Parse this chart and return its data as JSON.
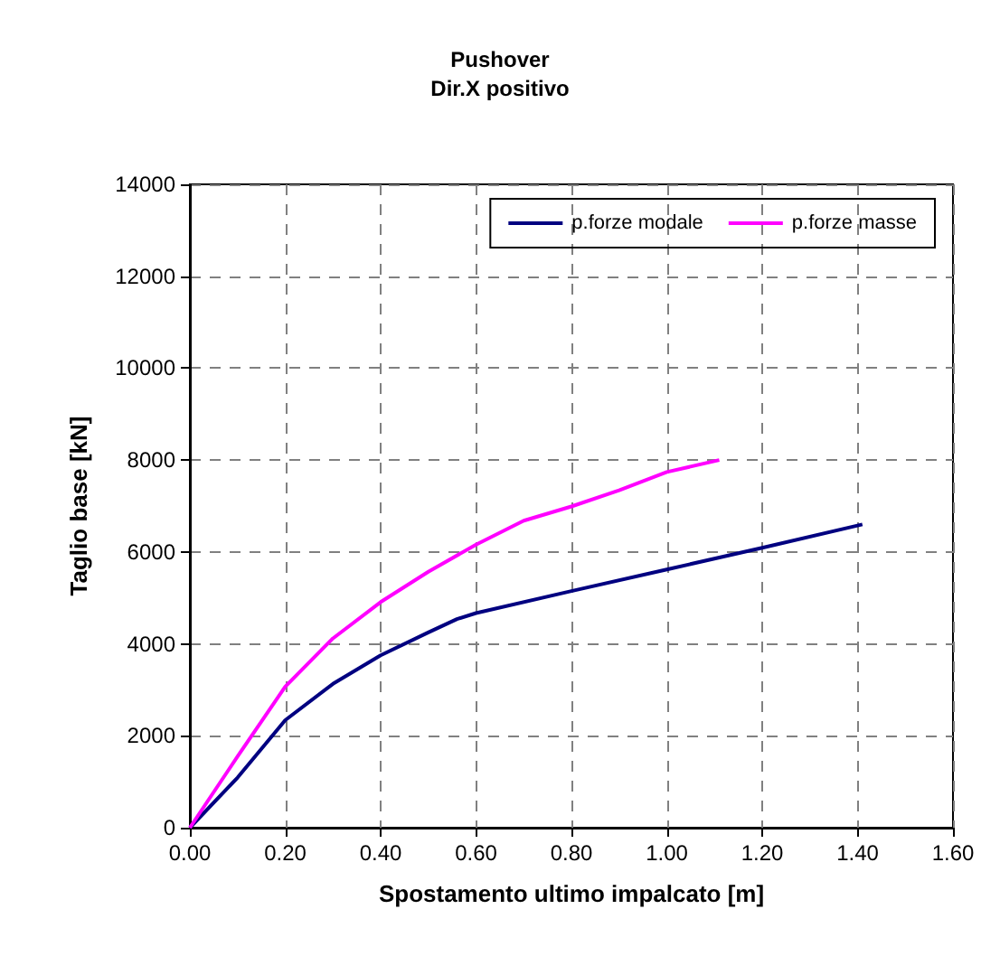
{
  "chart_data": {
    "type": "line",
    "title": "Pushover",
    "subtitle": "Dir.X positivo",
    "xlabel": "Spostamento ultimo impalcato [m]",
    "ylabel": "Taglio base [kN]",
    "xlim": [
      0,
      1.6
    ],
    "xticks": [
      {
        "value": 0,
        "label": "0.00"
      },
      {
        "value": 0.2,
        "label": "0.20"
      },
      {
        "value": 0.4,
        "label": "0.40"
      },
      {
        "value": 0.6,
        "label": "0.60"
      },
      {
        "value": 0.8,
        "label": "0.80"
      },
      {
        "value": 1,
        "label": "1.00"
      },
      {
        "value": 1.2,
        "label": "1.20"
      },
      {
        "value": 1.4,
        "label": "1.40"
      },
      {
        "value": 1.6,
        "label": "1.60"
      }
    ],
    "ylim": [
      0,
      14000
    ],
    "yticks": [
      0,
      2000,
      4000,
      6000,
      8000,
      10000,
      12000,
      14000
    ],
    "grid": true,
    "legend": "top right",
    "marker": "none",
    "line_style": "solid",
    "series": [
      {
        "name": "p.forze modale",
        "color": "#000080",
        "x": [
          0,
          0.1,
          0.2,
          0.3,
          0.4,
          0.5,
          0.56,
          0.6,
          0.8,
          1.0,
          1.2,
          1.41
        ],
        "values": [
          0,
          1090,
          2340,
          3130,
          3750,
          4250,
          4540,
          4670,
          5150,
          5620,
          6090,
          6600
        ]
      },
      {
        "name": "p.forze masse",
        "color": "#ff00ff",
        "x": [
          0,
          0.1,
          0.2,
          0.3,
          0.4,
          0.5,
          0.6,
          0.7,
          0.8,
          0.9,
          1.0,
          1.11
        ],
        "values": [
          0,
          1550,
          3070,
          4120,
          4910,
          5570,
          6160,
          6680,
          6990,
          7340,
          7740,
          8000
        ]
      }
    ]
  }
}
